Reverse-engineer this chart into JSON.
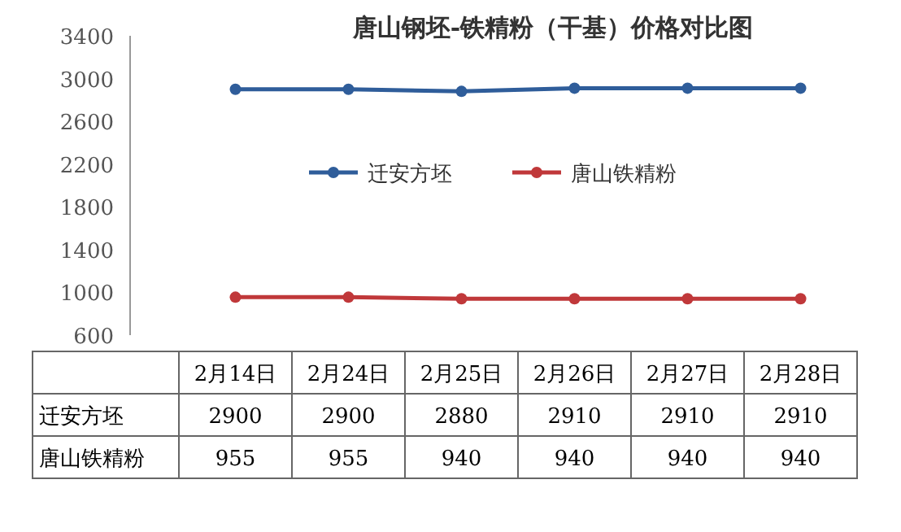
{
  "chart_data": {
    "type": "line",
    "title": "唐山钢坯-铁精粉（干基）价格对比图",
    "categories": [
      "2月14日",
      "2月24日",
      "2月25日",
      "2月26日",
      "2月27日",
      "2月28日"
    ],
    "series": [
      {
        "name": "迁安方坯",
        "color": "#2f5d9a",
        "values": [
          2900,
          2900,
          2880,
          2910,
          2910,
          2910
        ]
      },
      {
        "name": "唐山铁精粉",
        "color": "#c0383a",
        "values": [
          955,
          955,
          940,
          940,
          940,
          940
        ]
      }
    ],
    "ylim": [
      600,
      3400
    ],
    "yticks": [
      600,
      1000,
      1400,
      1800,
      2200,
      2600,
      3000,
      3400
    ],
    "marker": "circle",
    "legend": "top",
    "data_labels": true
  }
}
